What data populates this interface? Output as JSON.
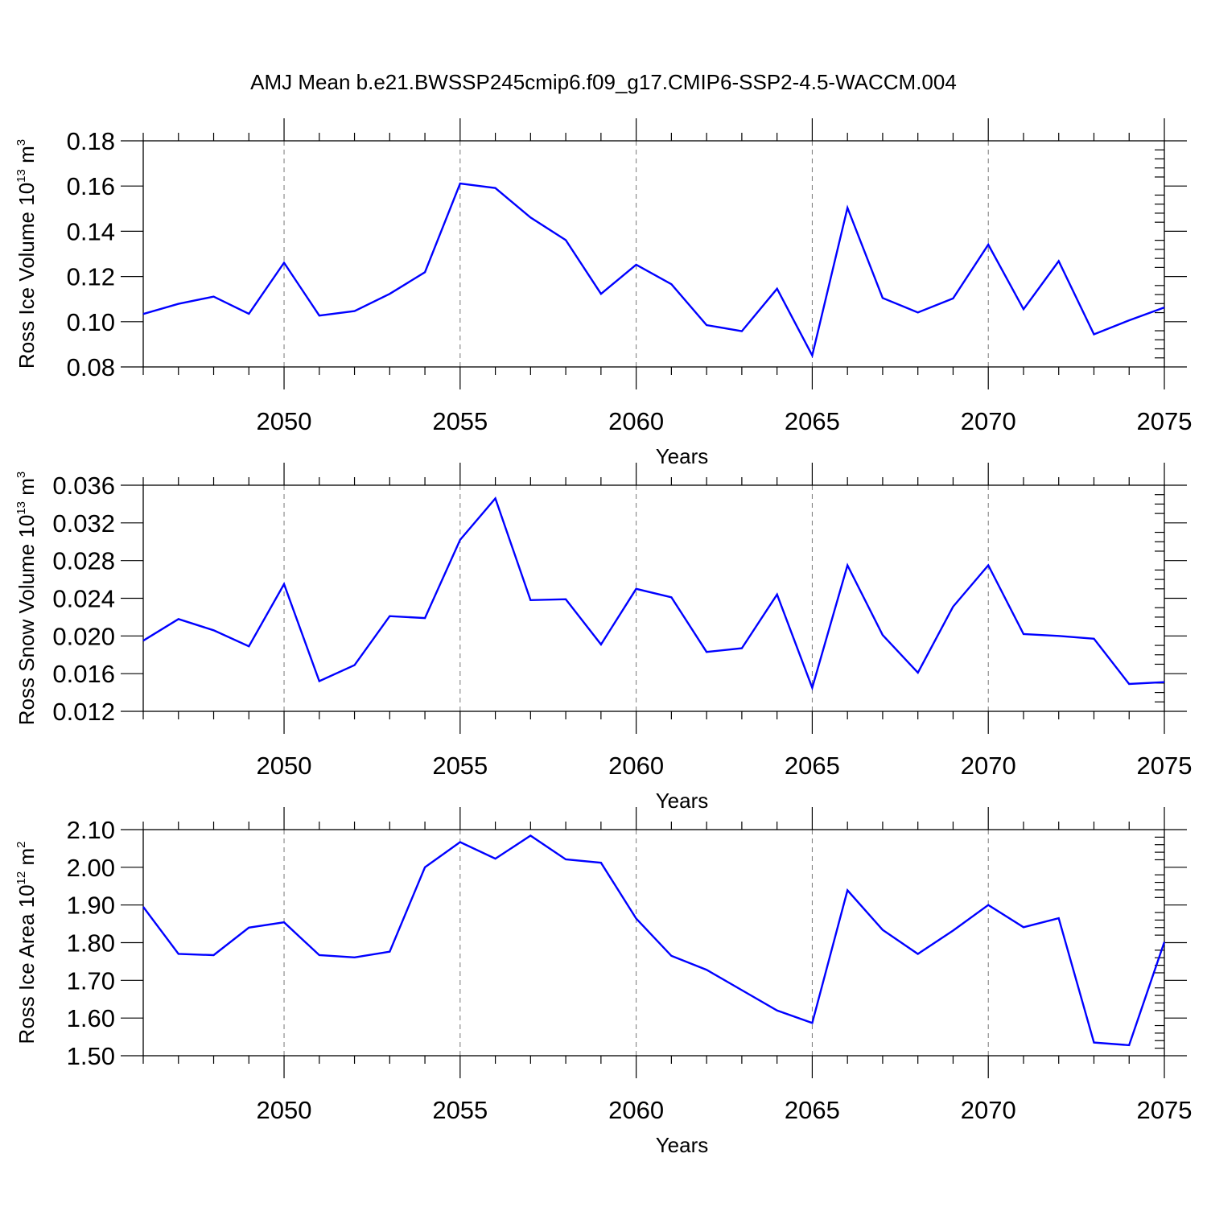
{
  "title": "AMJ Mean b.e21.BWSSP245cmip6.f09_g17.CMIP6-SSP2-4.5-WACCM.004",
  "chart_data": [
    {
      "type": "line",
      "title": "",
      "xlabel": "Years",
      "ylabel": {
        "text": "Ross Ice Volume 10",
        "exp": "13",
        "unit": " m",
        "unit_exp": "3"
      },
      "xlim": [
        2046,
        2075
      ],
      "ylim": [
        0.08,
        0.18
      ],
      "xticks": [
        2050,
        2055,
        2060,
        2065,
        2070,
        2075
      ],
      "yticks": [
        "0.08",
        "0.10",
        "0.12",
        "0.14",
        "0.16",
        "0.18"
      ],
      "y_minor_step": 0.004,
      "grid": "vertical dashed at major x ticks",
      "line_color": "#0000ff",
      "x": [
        2046,
        2047,
        2048,
        2049,
        2050,
        2051,
        2052,
        2053,
        2054,
        2055,
        2056,
        2057,
        2058,
        2059,
        2060,
        2061,
        2062,
        2063,
        2064,
        2065,
        2066,
        2067,
        2068,
        2069,
        2070,
        2071,
        2072,
        2073,
        2074,
        2075
      ],
      "y": [
        0.1034,
        0.1079,
        0.1111,
        0.1035,
        0.1261,
        0.1027,
        0.1047,
        0.1123,
        0.1219,
        0.1611,
        0.1591,
        0.1461,
        0.1361,
        0.1123,
        0.1252,
        0.1166,
        0.0985,
        0.0958,
        0.1146,
        0.0851,
        0.1504,
        0.1105,
        0.1041,
        0.1103,
        0.1341,
        0.1055,
        0.1268,
        0.0944,
        0.1006,
        0.1063
      ]
    },
    {
      "type": "line",
      "title": "",
      "xlabel": "Years",
      "ylabel": {
        "text": "Ross Snow Volume 10",
        "exp": "13",
        "unit": " m",
        "unit_exp": "3"
      },
      "xlim": [
        2046,
        2075
      ],
      "ylim": [
        0.012,
        0.036
      ],
      "xticks": [
        2050,
        2055,
        2060,
        2065,
        2070,
        2075
      ],
      "yticks": [
        "0.012",
        "0.016",
        "0.020",
        "0.024",
        "0.028",
        "0.032",
        "0.036"
      ],
      "y_minor_step": 0.001,
      "grid": "vertical dashed at major x ticks",
      "line_color": "#0000ff",
      "x": [
        2046,
        2047,
        2048,
        2049,
        2050,
        2051,
        2052,
        2053,
        2054,
        2055,
        2056,
        2057,
        2058,
        2059,
        2060,
        2061,
        2062,
        2063,
        2064,
        2065,
        2066,
        2067,
        2068,
        2069,
        2070,
        2071,
        2072,
        2073,
        2074,
        2075
      ],
      "y": [
        0.0195,
        0.0218,
        0.0206,
        0.0189,
        0.0255,
        0.0152,
        0.0169,
        0.0221,
        0.0219,
        0.0302,
        0.0346,
        0.0238,
        0.0239,
        0.0191,
        0.025,
        0.0241,
        0.0183,
        0.0187,
        0.0244,
        0.0145,
        0.0275,
        0.0201,
        0.0161,
        0.0231,
        0.0275,
        0.0202,
        0.02,
        0.0197,
        0.0149,
        0.0151
      ]
    },
    {
      "type": "line",
      "title": "",
      "xlabel": "Years",
      "ylabel": {
        "text": "Ross Ice Area 10",
        "exp": "12",
        "unit": " m",
        "unit_exp": "2"
      },
      "xlim": [
        2046,
        2075
      ],
      "ylim": [
        1.5,
        2.1
      ],
      "xticks": [
        2050,
        2055,
        2060,
        2065,
        2070,
        2075
      ],
      "yticks": [
        "1.50",
        "1.60",
        "1.70",
        "1.80",
        "1.90",
        "2.00",
        "2.10"
      ],
      "y_minor_step": 0.02,
      "grid": "vertical dashed at major x ticks",
      "line_color": "#0000ff",
      "x": [
        2046,
        2047,
        2048,
        2049,
        2050,
        2051,
        2052,
        2053,
        2054,
        2055,
        2056,
        2057,
        2058,
        2059,
        2060,
        2061,
        2062,
        2063,
        2064,
        2065,
        2066,
        2067,
        2068,
        2069,
        2070,
        2071,
        2072,
        2073,
        2074,
        2075
      ],
      "y": [
        1.895,
        1.77,
        1.767,
        1.84,
        1.854,
        1.767,
        1.761,
        1.776,
        2.0,
        2.067,
        2.023,
        2.084,
        2.021,
        2.012,
        1.864,
        1.765,
        1.728,
        1.674,
        1.62,
        1.587,
        1.939,
        1.834,
        1.77,
        1.832,
        1.9,
        1.841,
        1.865,
        1.535,
        1.528,
        1.802
      ]
    }
  ]
}
